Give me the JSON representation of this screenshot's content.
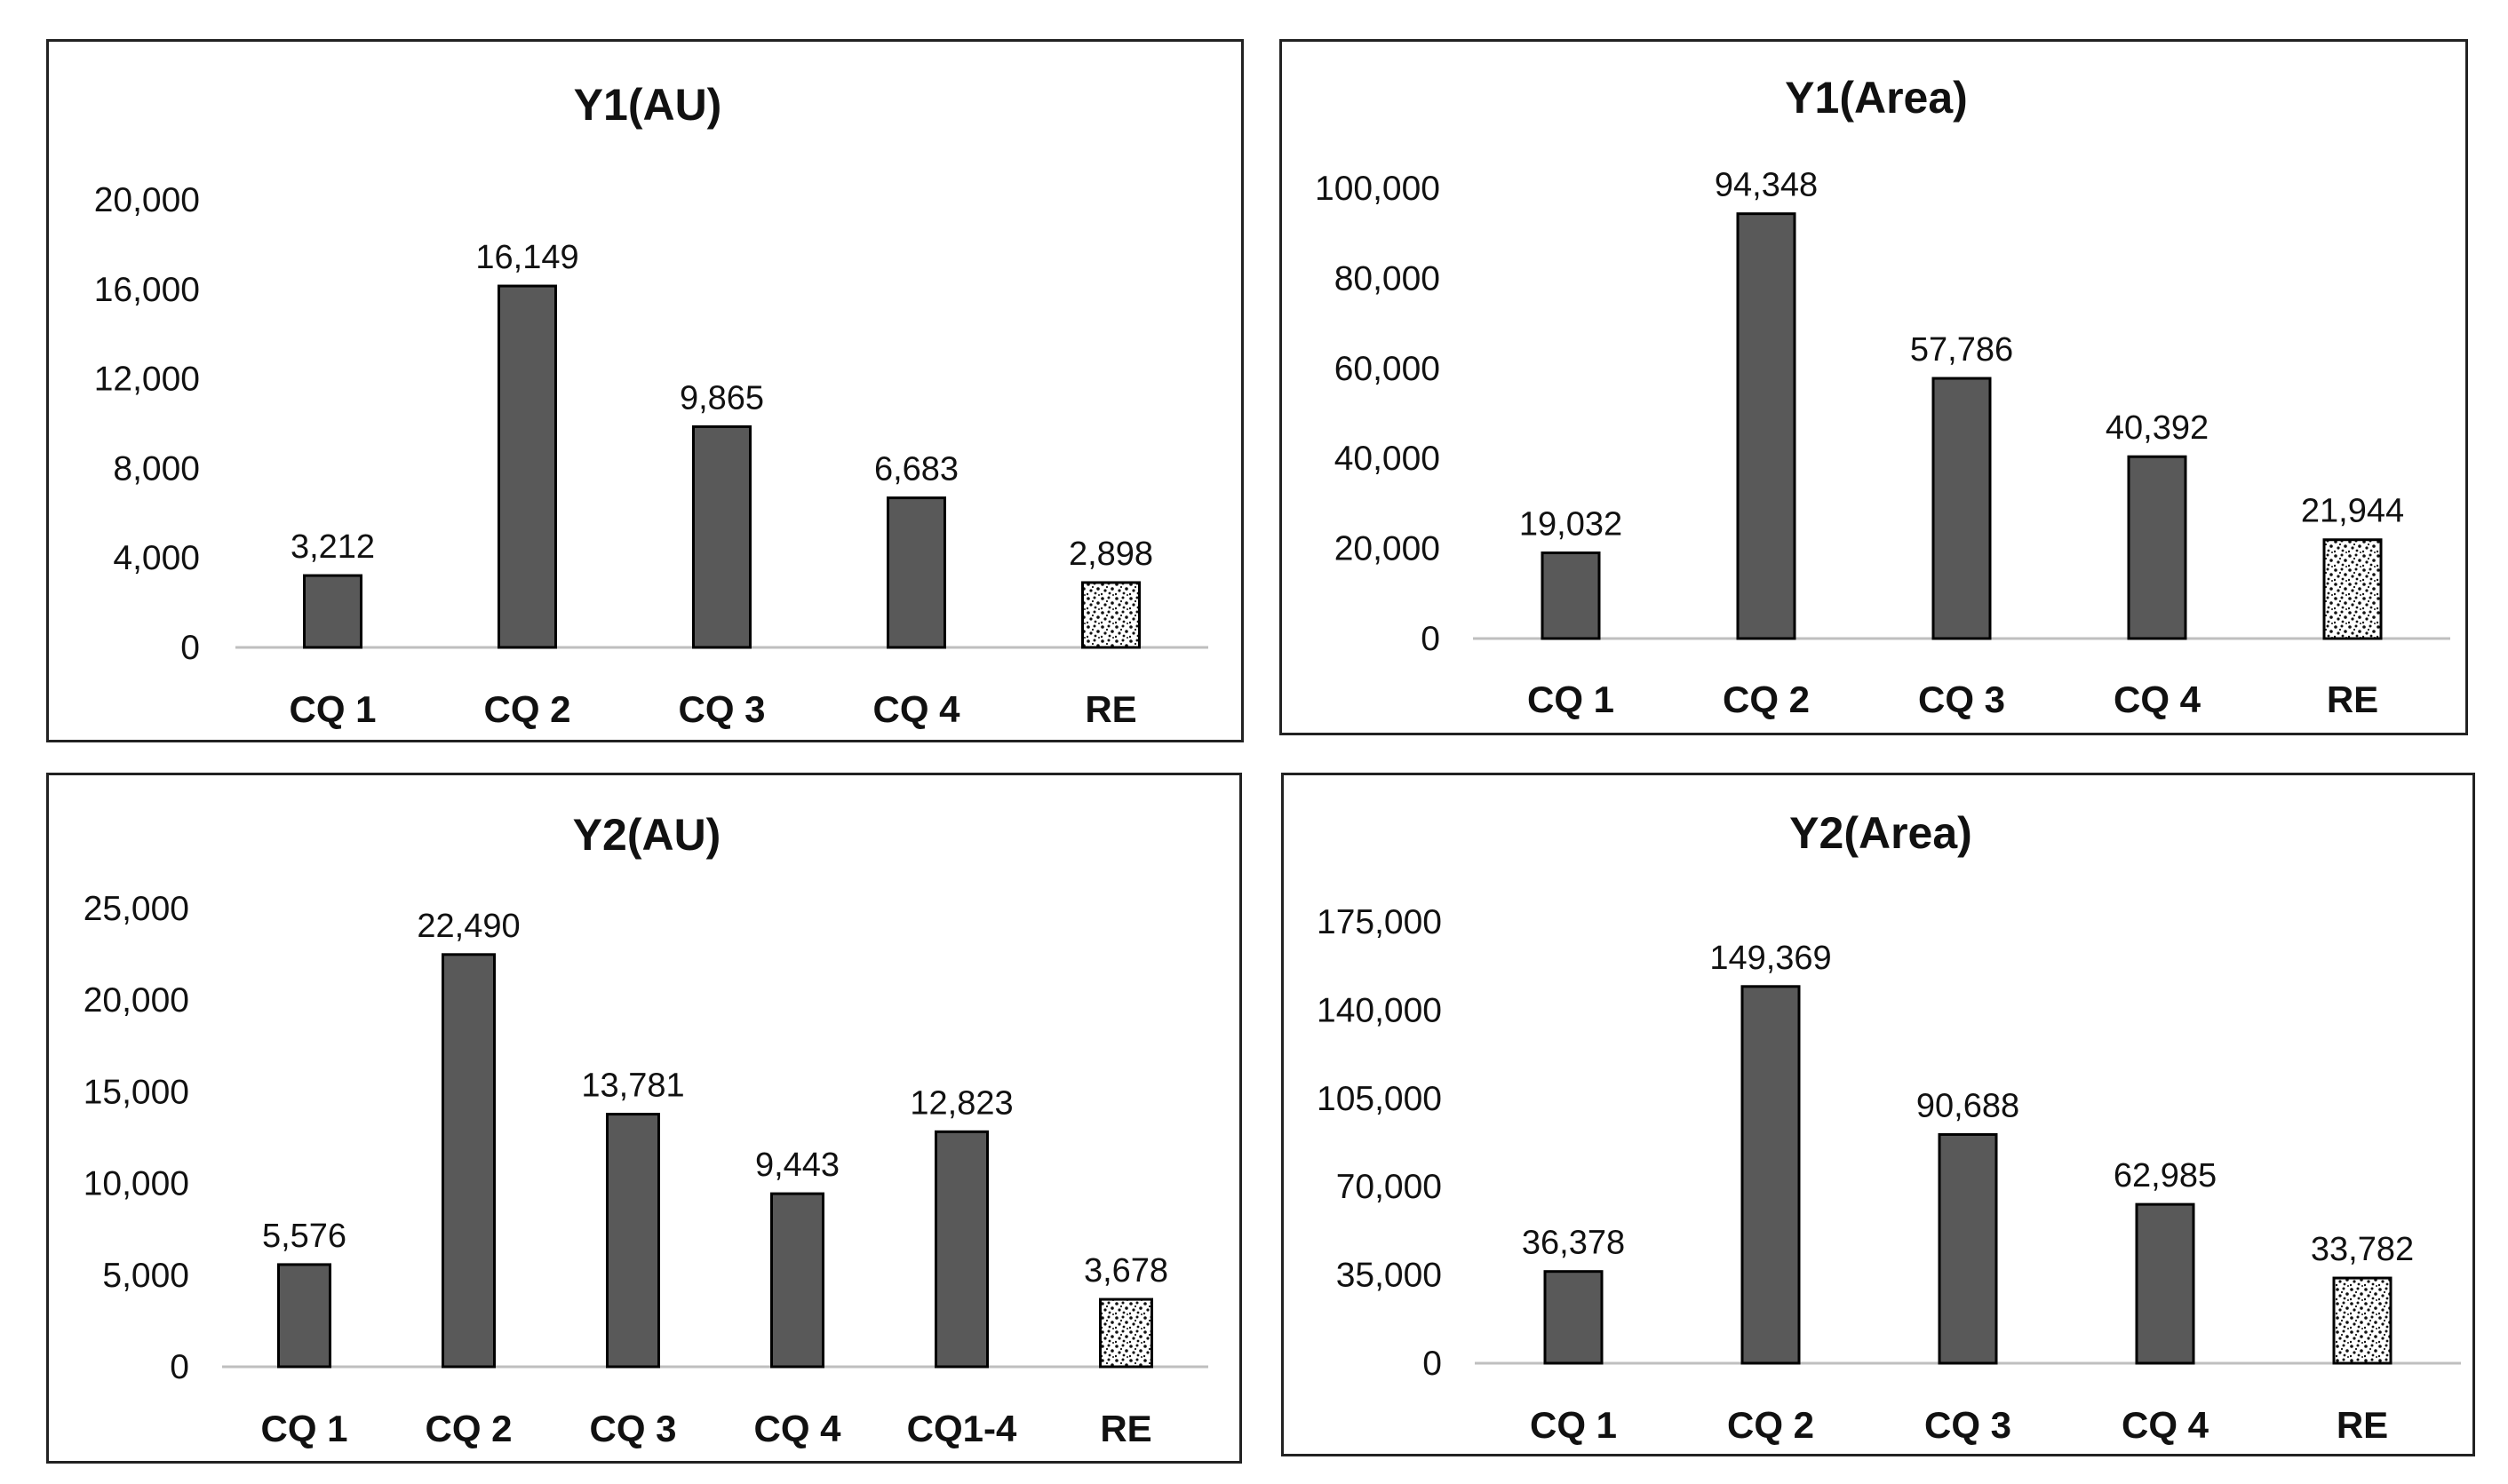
{
  "colors": {
    "bar": "#595959",
    "bar_stroke": "#000000",
    "axis": "#bfbfbf"
  },
  "chart_data": [
    {
      "type": "bar",
      "title": "Y1(AU)",
      "categories": [
        "CQ 1",
        "CQ 2",
        "CQ 3",
        "CQ 4",
        "RE"
      ],
      "values": [
        3212,
        16149,
        9865,
        6683,
        2898
      ],
      "value_labels": [
        "3,212",
        "16,149",
        "9,865",
        "6,683",
        "2,898"
      ],
      "patterns": [
        "solid",
        "solid",
        "solid",
        "solid",
        "dotted"
      ],
      "yticks": [
        0,
        4000,
        8000,
        12000,
        16000,
        20000
      ],
      "ytick_labels": [
        "0",
        "4,000",
        "8,000",
        "12,000",
        "16,000",
        "20,000"
      ],
      "ylim": [
        0,
        20000
      ],
      "xlabel": "",
      "ylabel": ""
    },
    {
      "type": "bar",
      "title": "Y1(Area)",
      "categories": [
        "CQ 1",
        "CQ 2",
        "CQ 3",
        "CQ 4",
        "RE"
      ],
      "values": [
        19032,
        94348,
        57786,
        40392,
        21944
      ],
      "value_labels": [
        "19,032",
        "94,348",
        "57,786",
        "40,392",
        "21,944"
      ],
      "patterns": [
        "solid",
        "solid",
        "solid",
        "solid",
        "dotted"
      ],
      "yticks": [
        0,
        20000,
        40000,
        60000,
        80000,
        100000
      ],
      "ytick_labels": [
        "0",
        "20,000",
        "40,000",
        "60,000",
        "80,000",
        "100,000"
      ],
      "ylim": [
        0,
        100000
      ],
      "xlabel": "",
      "ylabel": ""
    },
    {
      "type": "bar",
      "title": "Y2(AU)",
      "categories": [
        "CQ 1",
        "CQ 2",
        "CQ 3",
        "CQ 4",
        "CQ1-4",
        "RE"
      ],
      "values": [
        5576,
        22490,
        13781,
        9443,
        12823,
        3678
      ],
      "value_labels": [
        "5,576",
        "22,490",
        "13,781",
        "9,443",
        "12,823",
        "3,678"
      ],
      "patterns": [
        "solid",
        "solid",
        "solid",
        "solid",
        "solid",
        "dotted"
      ],
      "yticks": [
        0,
        5000,
        10000,
        15000,
        20000,
        25000
      ],
      "ytick_labels": [
        "0",
        "5,000",
        "10,000",
        "15,000",
        "20,000",
        "25,000"
      ],
      "ylim": [
        0,
        25000
      ],
      "xlabel": "",
      "ylabel": ""
    },
    {
      "type": "bar",
      "title": "Y2(Area)",
      "categories": [
        "CQ 1",
        "CQ 2",
        "CQ 3",
        "CQ 4",
        "RE"
      ],
      "values": [
        36378,
        149369,
        90688,
        62985,
        33782
      ],
      "value_labels": [
        "36,378",
        "149,369",
        "90,688",
        "62,985",
        "33,782"
      ],
      "patterns": [
        "solid",
        "solid",
        "solid",
        "solid",
        "dotted"
      ],
      "yticks": [
        0,
        35000,
        70000,
        105000,
        140000,
        175000
      ],
      "ytick_labels": [
        "0",
        "35,000",
        "70,000",
        "105,000",
        "140,000",
        "175,000"
      ],
      "ylim": [
        0,
        175000
      ],
      "xlabel": "",
      "ylabel": ""
    }
  ]
}
